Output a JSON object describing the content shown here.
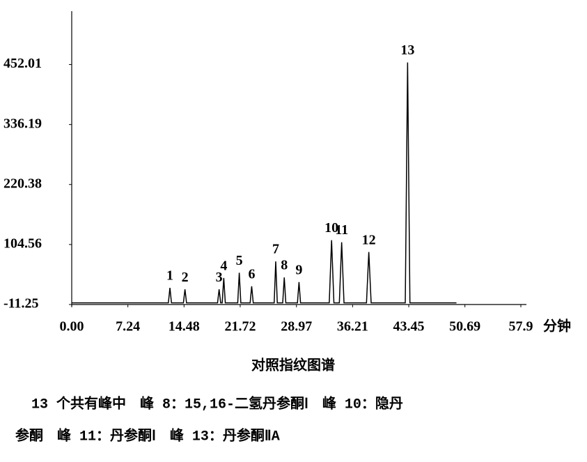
{
  "chart_data": {
    "type": "line",
    "x_label": "分钟",
    "series": [
      {
        "color": "#000000",
        "x": [
          0,
          12.46,
          12.66,
          12.86,
          14.4,
          14.6,
          14.8,
          18.8,
          19.0,
          19.2,
          19.4,
          19.6,
          19.8,
          21.4,
          21.6,
          21.8,
          23.0,
          23.2,
          23.4,
          26.1,
          26.3,
          26.5,
          27.2,
          27.4,
          27.6,
          29.1,
          29.3,
          29.5,
          33.2,
          33.5,
          33.8,
          34.5,
          34.8,
          35.1,
          38.0,
          38.3,
          38.6,
          43.0,
          43.3,
          43.6,
          49.6
        ],
        "values": [
          -8,
          -8,
          21,
          -8,
          -8,
          18,
          -8,
          -8,
          18,
          -8,
          -8,
          40,
          -8,
          -8,
          50,
          -8,
          -8,
          24,
          -8,
          -8,
          72,
          -8,
          -8,
          41,
          -8,
          -8,
          32,
          -8,
          -8,
          113,
          -8,
          -8,
          109,
          -8,
          -8,
          90,
          -8,
          -8,
          456,
          -8,
          -8
        ]
      }
    ],
    "annotations": [
      {
        "text": "1",
        "x": 12.66,
        "y": 21
      },
      {
        "text": "2",
        "x": 14.6,
        "y": 18
      },
      {
        "text": "3",
        "x": 19.0,
        "y": 18
      },
      {
        "text": "4",
        "x": 19.6,
        "y": 40
      },
      {
        "text": "5",
        "x": 21.6,
        "y": 50
      },
      {
        "text": "6",
        "x": 23.2,
        "y": 24
      },
      {
        "text": "7",
        "x": 26.3,
        "y": 72
      },
      {
        "text": "8",
        "x": 27.4,
        "y": 41
      },
      {
        "text": "9",
        "x": 29.3,
        "y": 32
      },
      {
        "text": "10",
        "x": 33.5,
        "y": 113
      },
      {
        "text": "11",
        "x": 34.8,
        "y": 109
      },
      {
        "text": "12",
        "x": 38.3,
        "y": 90
      },
      {
        "text": "13",
        "x": 43.3,
        "y": 456
      }
    ],
    "xlim": [
      0,
      57.9
    ],
    "xticks": [
      {
        "value": 0,
        "label": "0.00"
      },
      7.24,
      14.48,
      21.72,
      28.97,
      36.21,
      43.45,
      50.69,
      57.9
    ],
    "ylim": [
      -11.25,
      555
    ],
    "yticks": [
      -11.25,
      104.56,
      220.38,
      336.19,
      452.01
    ],
    "grid": false
  },
  "caption": "对照指纹图谱",
  "note": [
    "13 个共有峰中　峰 8：15,16-二氢丹参酮Ⅰ　峰 10：隐丹",
    "参酮　峰 11：丹参酮Ⅰ　峰 13：丹参酮ⅡA"
  ]
}
